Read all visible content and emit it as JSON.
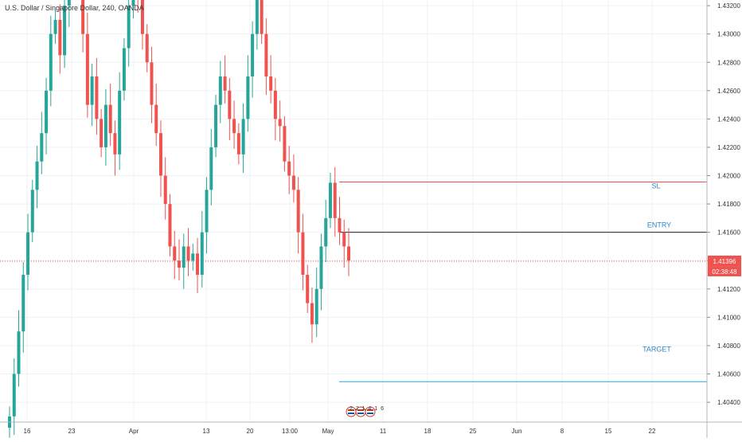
{
  "title": "U.S. Dollar / Singapore Dollar, 240, OANDA",
  "colors": {
    "up": "#26a69a",
    "down": "#ef5350",
    "grid": "#eef1f5",
    "axis_text": "#333333",
    "price_line": "#ef5350",
    "sl_line": "#ef5350",
    "entry_line": "#222222",
    "target_line": "#2aa9d6",
    "annotation_text": "#2f86c9"
  },
  "price_axis": {
    "ticks": [
      "1.43200",
      "1.43000",
      "1.42800",
      "1.42600",
      "1.42400",
      "1.42200",
      "1.42000",
      "1.41800",
      "1.41600",
      "1.41400",
      "1.41200",
      "1.41000",
      "1.40800",
      "1.40600",
      "1.40400"
    ],
    "ylim": [
      1.4026,
      1.4324
    ]
  },
  "time_axis": {
    "ticks": [
      "16",
      "23",
      "Apr",
      "13",
      "20",
      "13:00",
      "May",
      "11",
      "18",
      "25",
      "Jun",
      "8",
      "15",
      "22"
    ]
  },
  "current_price": {
    "label": "1.41396",
    "countdown": "02:38:48",
    "value": 1.41396
  },
  "levels": [
    {
      "name": "SL",
      "label": "SL",
      "value": 1.41955
    },
    {
      "name": "ENTRY",
      "label": "ENTRY",
      "value": 1.416
    },
    {
      "name": "TARGET",
      "label": "TARGET",
      "value": 1.40545
    }
  ],
  "events": {
    "label": "2 2 1 4 1 6"
  },
  "chart_data": {
    "type": "candlestick",
    "ylim": [
      1.4026,
      1.4324
    ],
    "x_axis_ticks": [
      "16",
      "23",
      "Apr",
      "13",
      "20",
      "13:00",
      "May",
      "11",
      "18",
      "25",
      "Jun",
      "8",
      "15",
      "22"
    ],
    "series": [
      {
        "close": [
          1.403,
          1.406,
          1.409,
          1.413,
          1.416,
          1.419,
          1.421,
          1.423,
          1.426,
          1.43,
          1.431,
          1.4285,
          1.432,
          1.434,
          1.436,
          1.4345,
          1.43,
          1.425,
          1.427,
          1.424,
          1.422,
          1.425,
          1.423,
          1.4215,
          1.426,
          1.429,
          1.432,
          1.434,
          1.433,
          1.43,
          1.428,
          1.425,
          1.423,
          1.42,
          1.418,
          1.415,
          1.414,
          1.4135,
          1.415,
          1.414,
          1.4145,
          1.413,
          1.416,
          1.419,
          1.422,
          1.425,
          1.427,
          1.426,
          1.424,
          1.423,
          1.4215,
          1.424,
          1.427,
          1.43,
          1.433,
          1.43,
          1.427,
          1.426,
          1.424,
          1.4235,
          1.421,
          1.42,
          1.419,
          1.416,
          1.413,
          1.411,
          1.4095,
          1.412,
          1.415,
          1.417,
          1.4195,
          1.417,
          1.416,
          1.415,
          1.414
        ]
      }
    ]
  }
}
